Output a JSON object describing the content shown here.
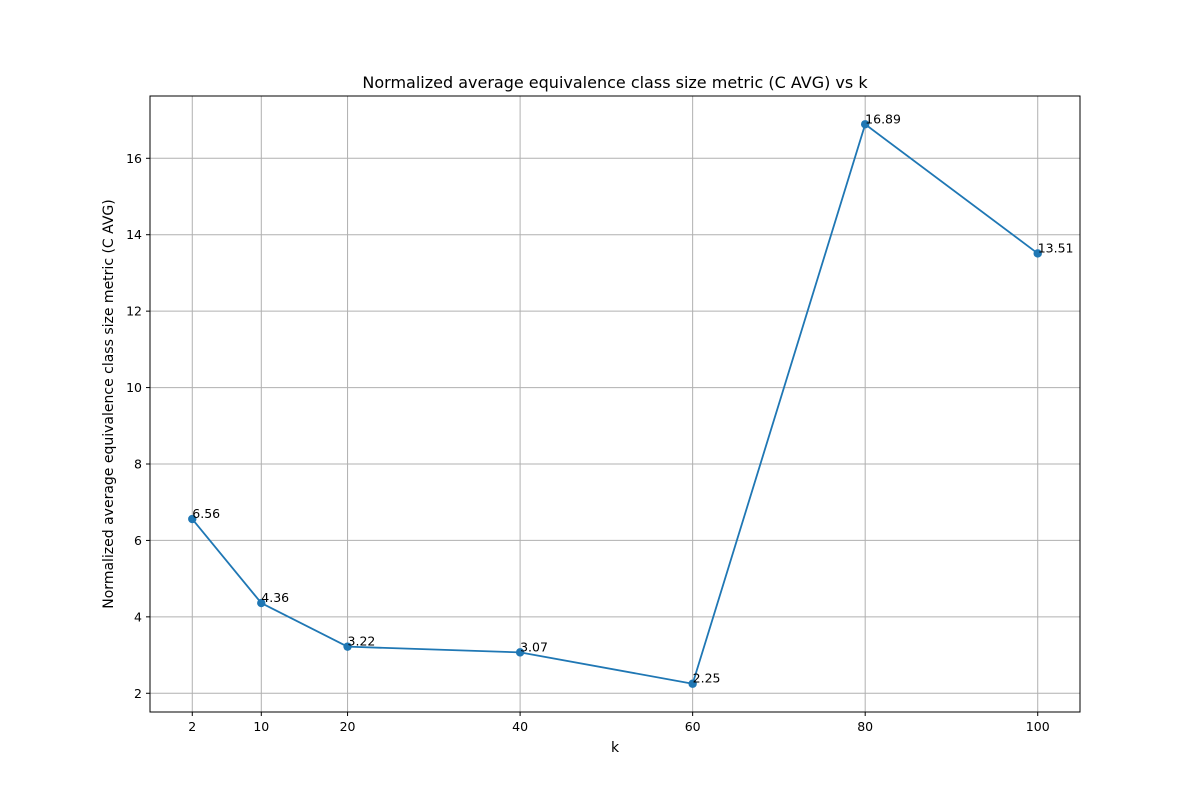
{
  "chart_data": {
    "type": "line",
    "title": "Normalized average equivalence class size metric (C AVG) vs k",
    "xlabel": "k",
    "ylabel": "Normalized average equivalence class size metric (C AVG)",
    "x": [
      2,
      10,
      20,
      40,
      60,
      80,
      100
    ],
    "series": [
      {
        "values": [
          6.56,
          4.36,
          3.22,
          3.07,
          2.25,
          16.89,
          13.51
        ]
      }
    ],
    "data_labels": [
      "6.56",
      "4.36",
      "3.22",
      "3.07",
      "2.25",
      "16.89",
      "13.51"
    ],
    "x_ticks": [
      2,
      10,
      20,
      40,
      60,
      80,
      100
    ],
    "y_ticks": [
      2,
      4,
      6,
      8,
      10,
      12,
      14,
      16
    ],
    "xlim": [
      -2.9,
      104.9
    ],
    "ylim": [
      1.51,
      17.63
    ],
    "grid": true,
    "marker": "circle",
    "colors": {
      "line": "#1f77b4",
      "grid": "#b0b0b0",
      "axes": "#000000"
    }
  }
}
